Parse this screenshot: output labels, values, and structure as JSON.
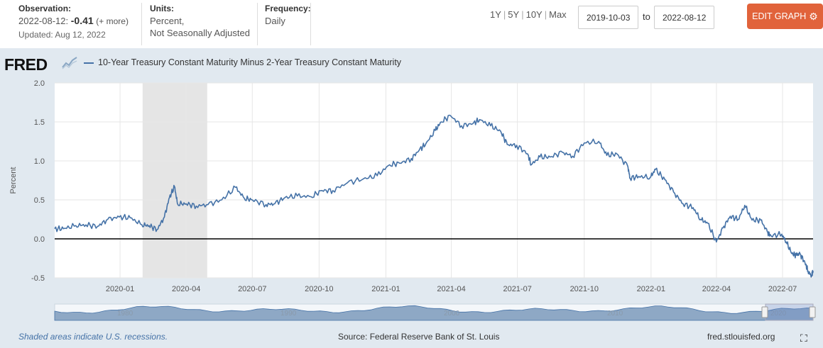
{
  "observation": {
    "label": "Observation:",
    "date": "2022-08-12:",
    "value": "-0.41",
    "more": "(+ more)",
    "updated": "Updated: Aug 12, 2022"
  },
  "units": {
    "label": "Units:",
    "line1": "Percent,",
    "line2": "Not Seasonally Adjusted"
  },
  "frequency": {
    "label": "Frequency:",
    "value": "Daily"
  },
  "range_buttons": [
    "1Y",
    "5Y",
    "10Y",
    "Max"
  ],
  "date_range": {
    "from": "2019-10-03",
    "to_label": "to",
    "to": "2022-08-12"
  },
  "edit_button": {
    "label": "EDIT GRAPH",
    "color": "#e1633b"
  },
  "logo": "FRED",
  "footer": {
    "recession_note": "Shaded areas indicate U.S. recessions.",
    "source": "Source: Federal Reserve Bank of St. Louis",
    "url": "fred.stlouisfed.org"
  },
  "navigator_labels": [
    "1980",
    "1990",
    "2000",
    "2010",
    "2020"
  ],
  "chart_data": {
    "type": "line",
    "title": "",
    "series": [
      {
        "name": "10-Year Treasury Constant Maturity Minus 2-Year Treasury Constant Maturity",
        "color": "#4572a7",
        "points": [
          [
            "2019-10-03",
            0.13
          ],
          [
            "2019-10-15",
            0.13
          ],
          [
            "2019-11-01",
            0.17
          ],
          [
            "2019-11-15",
            0.18
          ],
          [
            "2019-12-01",
            0.16
          ],
          [
            "2019-12-15",
            0.25
          ],
          [
            "2019-12-31",
            0.28
          ],
          [
            "2020-01-15",
            0.27
          ],
          [
            "2020-01-31",
            0.18
          ],
          [
            "2020-02-10",
            0.17
          ],
          [
            "2020-02-21",
            0.12
          ],
          [
            "2020-03-02",
            0.28
          ],
          [
            "2020-03-09",
            0.53
          ],
          [
            "2020-03-16",
            0.67
          ],
          [
            "2020-03-20",
            0.45
          ],
          [
            "2020-04-01",
            0.45
          ],
          [
            "2020-04-15",
            0.42
          ],
          [
            "2020-05-01",
            0.44
          ],
          [
            "2020-05-20",
            0.5
          ],
          [
            "2020-06-08",
            0.66
          ],
          [
            "2020-06-20",
            0.52
          ],
          [
            "2020-07-01",
            0.5
          ],
          [
            "2020-07-20",
            0.44
          ],
          [
            "2020-08-01",
            0.45
          ],
          [
            "2020-08-15",
            0.53
          ],
          [
            "2020-09-01",
            0.55
          ],
          [
            "2020-09-20",
            0.54
          ],
          [
            "2020-10-05",
            0.62
          ],
          [
            "2020-10-20",
            0.62
          ],
          [
            "2020-11-09",
            0.72
          ],
          [
            "2020-12-01",
            0.77
          ],
          [
            "2020-12-20",
            0.81
          ],
          [
            "2021-01-06",
            0.95
          ],
          [
            "2021-01-20",
            0.97
          ],
          [
            "2021-02-05",
            1.03
          ],
          [
            "2021-02-16",
            1.14
          ],
          [
            "2021-02-25",
            1.22
          ],
          [
            "2021-03-10",
            1.39
          ],
          [
            "2021-03-18",
            1.5
          ],
          [
            "2021-03-31",
            1.58
          ],
          [
            "2021-04-15",
            1.45
          ],
          [
            "2021-05-01",
            1.48
          ],
          [
            "2021-05-10",
            1.53
          ],
          [
            "2021-05-25",
            1.45
          ],
          [
            "2021-06-08",
            1.38
          ],
          [
            "2021-06-17",
            1.21
          ],
          [
            "2021-06-30",
            1.2
          ],
          [
            "2021-07-15",
            1.09
          ],
          [
            "2021-07-20",
            0.95
          ],
          [
            "2021-08-01",
            1.05
          ],
          [
            "2021-08-15",
            1.05
          ],
          [
            "2021-09-01",
            1.11
          ],
          [
            "2021-09-15",
            1.06
          ],
          [
            "2021-10-01",
            1.23
          ],
          [
            "2021-10-21",
            1.25
          ],
          [
            "2021-11-01",
            1.07
          ],
          [
            "2021-11-15",
            1.09
          ],
          [
            "2021-11-30",
            0.93
          ],
          [
            "2021-12-03",
            0.78
          ],
          [
            "2021-12-15",
            0.8
          ],
          [
            "2021-12-31",
            0.79
          ],
          [
            "2022-01-07",
            0.89
          ],
          [
            "2022-01-20",
            0.76
          ],
          [
            "2022-02-01",
            0.6
          ],
          [
            "2022-02-14",
            0.45
          ],
          [
            "2022-02-28",
            0.4
          ],
          [
            "2022-03-10",
            0.25
          ],
          [
            "2022-03-20",
            0.2
          ],
          [
            "2022-04-01",
            -0.04
          ],
          [
            "2022-04-10",
            0.14
          ],
          [
            "2022-04-20",
            0.29
          ],
          [
            "2022-05-01",
            0.25
          ],
          [
            "2022-05-10",
            0.43
          ],
          [
            "2022-05-20",
            0.24
          ],
          [
            "2022-06-01",
            0.24
          ],
          [
            "2022-06-10",
            0.09
          ],
          [
            "2022-06-15",
            0.04
          ],
          [
            "2022-06-30",
            0.06
          ],
          [
            "2022-07-06",
            -0.04
          ],
          [
            "2022-07-14",
            -0.19
          ],
          [
            "2022-07-20",
            -0.21
          ],
          [
            "2022-07-25",
            -0.19
          ],
          [
            "2022-08-01",
            -0.31
          ],
          [
            "2022-08-05",
            -0.41
          ],
          [
            "2022-08-10",
            -0.48
          ],
          [
            "2022-08-12",
            -0.41
          ]
        ]
      }
    ],
    "recessions": [
      [
        "2020-02-01",
        "2020-04-30"
      ]
    ],
    "xlim": [
      "2019-10-03",
      "2022-08-12"
    ],
    "ylim": [
      -0.5,
      2.0
    ],
    "yticks": [
      -0.5,
      0.0,
      0.5,
      1.0,
      1.5,
      2.0
    ],
    "ytick_labels": [
      "-0.5",
      "0.0",
      "0.5",
      "1.0",
      "1.5",
      "2.0"
    ],
    "xticks": [
      "2020-01-01",
      "2020-04-01",
      "2020-07-01",
      "2020-10-01",
      "2021-01-01",
      "2021-04-01",
      "2021-07-01",
      "2021-10-01",
      "2022-01-01",
      "2022-04-01",
      "2022-07-01"
    ],
    "xtick_labels": [
      "2020-01",
      "2020-04",
      "2020-07",
      "2020-10",
      "2021-01",
      "2021-04",
      "2021-07",
      "2021-10",
      "2022-01",
      "2022-04",
      "2022-07"
    ],
    "ylabel": "Percent",
    "xlabel": "",
    "grid": true,
    "zero_line": true
  }
}
